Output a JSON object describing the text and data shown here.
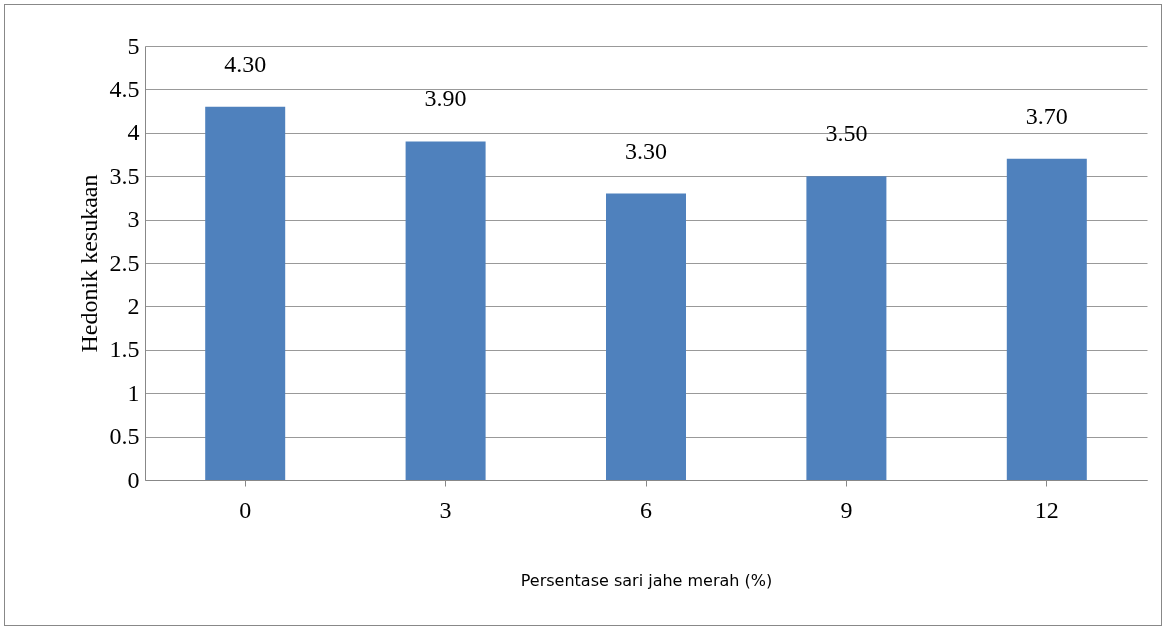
{
  "chart_data": {
    "type": "bar",
    "xlabel": "Persentase sari jahe merah (%)",
    "ylabel": "Hedonik kesukaan",
    "categories": [
      "0",
      "3",
      "6",
      "9",
      "12"
    ],
    "series": [
      {
        "color": "#4f81bd",
        "values": [
          4.3,
          3.9,
          3.3,
          3.5,
          3.7
        ],
        "value_labels": [
          "4.30",
          "3.90",
          "3.30",
          "3.50",
          "3.70"
        ]
      }
    ],
    "ylim": [
      0,
      5
    ],
    "yticks": [
      0,
      0.5,
      1,
      1.5,
      2,
      2.5,
      3,
      3.5,
      4,
      4.5,
      5
    ],
    "grid": "y",
    "legend": false
  }
}
